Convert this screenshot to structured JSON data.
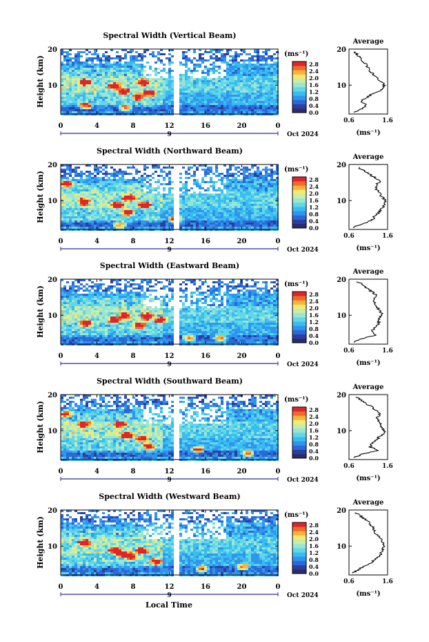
{
  "figure": {
    "xlabel": "Local Time",
    "date_label": "Oct 2024",
    "midnight_label": "9",
    "ylabel": "Height (km)",
    "colorbar_unit": "(ms⁻¹)",
    "profile_title": "Average",
    "profile_xlabel": "(ms⁻¹)",
    "colors": {
      "bad": "#ffffff",
      "scale": [
        "#2b2b6e",
        "#2c3fa0",
        "#2b68d8",
        "#2f95ef",
        "#38bdf1",
        "#62d7e8",
        "#9be5d3",
        "#c8eda9",
        "#f2ea70",
        "#f7b33d",
        "#f06a2b",
        "#e0242a"
      ]
    }
  },
  "chart_data": [
    {
      "type": "heatmap",
      "title": "Spectral Width (Vertical Beam)",
      "x_ticks": [
        "0",
        "4",
        "8",
        "12",
        "16",
        "20",
        "0"
      ],
      "y_ticks": [
        "20",
        "10"
      ],
      "xlim": [
        0,
        24
      ],
      "ylim": [
        2,
        20
      ],
      "colorbar_ticks": [
        "2.8",
        "2.4",
        "2.0",
        "1.6",
        "1.2",
        "0.8",
        "0.4",
        "0.0"
      ],
      "colorbar_range": [
        0.0,
        2.8
      ],
      "data_gap_hours": [
        12.4,
        13.1
      ],
      "red_spots": [
        [
          2.5,
          11
        ],
        [
          2.6,
          4.5
        ],
        [
          5.8,
          10
        ],
        [
          6.8,
          8.5
        ],
        [
          7.0,
          4
        ],
        [
          8.4,
          7
        ],
        [
          9.0,
          11
        ],
        [
          9.6,
          8
        ]
      ],
      "profile": {
        "title": "Average",
        "x_ticks": [
          "0.6",
          "1.6"
        ],
        "y_ticks": [
          "20",
          "10"
        ],
        "xlim": [
          0.6,
          1.6
        ],
        "ylim": [
          2,
          20
        ],
        "height_km": [
          2.5,
          3.5,
          4.5,
          5.5,
          6.5,
          7.5,
          8.5,
          9.5,
          10.5,
          11.5,
          12.5,
          13.5,
          14.5,
          15.5,
          16.5,
          17.5,
          18.5,
          19.5
        ],
        "width_ms": [
          0.72,
          0.95,
          1.05,
          0.9,
          1.05,
          1.18,
          1.4,
          1.5,
          1.52,
          1.35,
          1.28,
          1.18,
          1.1,
          1.05,
          0.98,
          0.9,
          0.82,
          0.72
        ]
      }
    },
    {
      "type": "heatmap",
      "title": "Spectral Width (Northward Beam)",
      "x_ticks": [
        "0",
        "4",
        "8",
        "12",
        "16",
        "20",
        "0"
      ],
      "y_ticks": [
        "20",
        "10"
      ],
      "xlim": [
        0,
        24
      ],
      "ylim": [
        2,
        20
      ],
      "colorbar_ticks": [
        "2.8",
        "2.4",
        "2.0",
        "1.6",
        "1.2",
        "0.8",
        "0.4",
        "0.0"
      ],
      "colorbar_range": [
        0.0,
        2.8
      ],
      "data_gap_hours": [
        12.4,
        13.1
      ],
      "red_spots": [
        [
          0.5,
          15
        ],
        [
          2.4,
          10
        ],
        [
          6.0,
          9
        ],
        [
          7.2,
          7
        ],
        [
          7.4,
          11
        ],
        [
          9.1,
          9
        ],
        [
          6.4,
          3.5
        ],
        [
          12.5,
          5
        ]
      ],
      "profile": {
        "title": "Average",
        "x_ticks": [
          "0.6",
          "1.6"
        ],
        "y_ticks": [
          "20",
          "10"
        ],
        "xlim": [
          0.6,
          1.6
        ],
        "ylim": [
          2,
          20
        ],
        "height_km": [
          2.5,
          3.5,
          4.5,
          5.5,
          6.5,
          7.5,
          8.5,
          9.5,
          10.5,
          11.5,
          12.5,
          13.5,
          14.5,
          15.5,
          16.5,
          17.5,
          18.5,
          19.5
        ],
        "width_ms": [
          0.7,
          0.92,
          1.2,
          1.25,
          1.35,
          1.42,
          1.5,
          1.55,
          1.5,
          1.42,
          1.35,
          1.3,
          1.3,
          1.42,
          1.25,
          1.1,
          0.95,
          0.8
        ]
      }
    },
    {
      "type": "heatmap",
      "title": "Spectral Width (Eastward Beam)",
      "x_ticks": [
        "0",
        "4",
        "8",
        "12",
        "16",
        "20",
        "0"
      ],
      "y_ticks": [
        "20",
        "10"
      ],
      "xlim": [
        0,
        24
      ],
      "ylim": [
        2,
        20
      ],
      "colorbar_ticks": [
        "2.8",
        "2.4",
        "2.0",
        "1.6",
        "1.2",
        "0.8",
        "0.4",
        "0.0"
      ],
      "colorbar_range": [
        0.0,
        2.8
      ],
      "data_gap_hours": [
        12.4,
        13.1
      ],
      "red_spots": [
        [
          2.6,
          8
        ],
        [
          5.8,
          9
        ],
        [
          7.0,
          10
        ],
        [
          8.6,
          7.5
        ],
        [
          9.4,
          10
        ],
        [
          11.0,
          9
        ],
        [
          14.0,
          4
        ],
        [
          17.5,
          4
        ]
      ],
      "profile": {
        "title": "Average",
        "x_ticks": [
          "0.6",
          "1.6"
        ],
        "y_ticks": [
          "20",
          "10"
        ],
        "xlim": [
          0.6,
          1.6
        ],
        "ylim": [
          2,
          20
        ],
        "height_km": [
          2.5,
          3.5,
          4.5,
          5.5,
          6.5,
          7.5,
          8.5,
          9.5,
          10.5,
          11.5,
          12.5,
          13.5,
          14.5,
          15.5,
          16.5,
          17.5,
          18.5,
          19.5
        ],
        "width_ms": [
          0.72,
          0.9,
          1.3,
          1.2,
          1.25,
          1.35,
          1.38,
          1.4,
          1.45,
          1.38,
          1.3,
          1.28,
          1.22,
          1.3,
          1.2,
          1.05,
          0.95,
          0.8
        ]
      }
    },
    {
      "type": "heatmap",
      "title": "Spectral Width (Southward Beam)",
      "x_ticks": [
        "0",
        "4",
        "8",
        "12",
        "16",
        "20",
        "0"
      ],
      "y_ticks": [
        "20",
        "10"
      ],
      "xlim": [
        0,
        24
      ],
      "ylim": [
        2,
        20
      ],
      "colorbar_ticks": [
        "2.8",
        "2.4",
        "2.0",
        "1.6",
        "1.2",
        "0.8",
        "0.4",
        "0.0"
      ],
      "colorbar_range": [
        0.0,
        2.8
      ],
      "data_gap_hours": [
        12.4,
        13.1
      ],
      "red_spots": [
        [
          0.5,
          15
        ],
        [
          2.4,
          12
        ],
        [
          6.4,
          12
        ],
        [
          7.2,
          9
        ],
        [
          8.8,
          8
        ],
        [
          9.6,
          6
        ],
        [
          15.0,
          5
        ],
        [
          20.5,
          4
        ]
      ],
      "profile": {
        "title": "Average",
        "x_ticks": [
          "0.6",
          "1.6"
        ],
        "y_ticks": [
          "20",
          "10"
        ],
        "xlim": [
          0.6,
          1.6
        ],
        "ylim": [
          2,
          20
        ],
        "height_km": [
          2.5,
          3.5,
          4.5,
          5.5,
          6.5,
          7.5,
          8.5,
          9.5,
          10.5,
          11.5,
          12.5,
          13.5,
          14.5,
          15.5,
          16.5,
          17.5,
          18.5,
          19.5
        ],
        "width_ms": [
          0.72,
          0.95,
          1.35,
          1.15,
          1.2,
          1.32,
          1.4,
          1.52,
          1.5,
          1.42,
          1.38,
          1.32,
          1.4,
          1.3,
          1.2,
          1.05,
          0.9,
          0.78
        ]
      }
    },
    {
      "type": "heatmap",
      "title": "Spectral Width (Westward Beam)",
      "x_ticks": [
        "0",
        "4",
        "8",
        "12",
        "16",
        "20",
        "0"
      ],
      "y_ticks": [
        "20",
        "10"
      ],
      "xlim": [
        0,
        24
      ],
      "ylim": [
        2,
        20
      ],
      "colorbar_ticks": [
        "2.8",
        "2.4",
        "2.0",
        "1.6",
        "1.2",
        "0.8",
        "0.4",
        "0.0"
      ],
      "colorbar_range": [
        0.0,
        2.8
      ],
      "data_gap_hours": [
        12.4,
        13.1
      ],
      "red_spots": [
        [
          2.5,
          11
        ],
        [
          5.8,
          9
        ],
        [
          6.6,
          8
        ],
        [
          7.6,
          7.5
        ],
        [
          8.8,
          9
        ],
        [
          10.4,
          6
        ],
        [
          15.5,
          4
        ],
        [
          20.0,
          4.5
        ]
      ],
      "profile": {
        "title": "Average",
        "x_ticks": [
          "0.6",
          "1.6"
        ],
        "y_ticks": [
          "20",
          "10"
        ],
        "xlim": [
          0.6,
          1.6
        ],
        "ylim": [
          2,
          20
        ],
        "height_km": [
          2.5,
          3.5,
          4.5,
          5.5,
          6.5,
          7.5,
          8.5,
          9.5,
          10.5,
          11.5,
          12.5,
          13.5,
          14.5,
          15.5,
          16.5,
          17.5,
          18.5,
          19.5
        ],
        "width_ms": [
          0.7,
          0.85,
          1.0,
          1.2,
          1.3,
          1.4,
          1.45,
          1.5,
          1.5,
          1.45,
          1.38,
          1.3,
          1.25,
          1.2,
          1.12,
          1.0,
          0.88,
          0.75
        ]
      }
    }
  ]
}
